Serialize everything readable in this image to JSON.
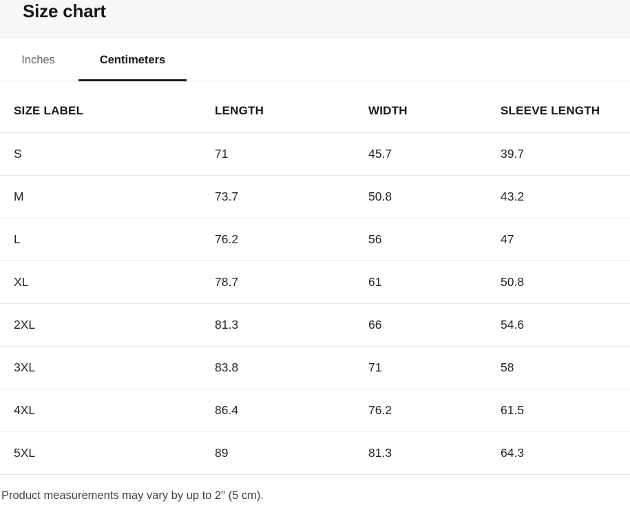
{
  "header": {
    "title": "Size chart"
  },
  "tabs": {
    "inches": {
      "label": "Inches",
      "active": false
    },
    "centimeters": {
      "label": "Centimeters",
      "active": true
    }
  },
  "table": {
    "columns": [
      "SIZE LABEL",
      "LENGTH",
      "WIDTH",
      "SLEEVE LENGTH"
    ],
    "rows": [
      [
        "S",
        "71",
        "45.7",
        "39.7"
      ],
      [
        "M",
        "73.7",
        "50.8",
        "43.2"
      ],
      [
        "L",
        "76.2",
        "56",
        "47"
      ],
      [
        "XL",
        "78.7",
        "61",
        "50.8"
      ],
      [
        "2XL",
        "81.3",
        "66",
        "54.6"
      ],
      [
        "3XL",
        "83.8",
        "71",
        "58"
      ],
      [
        "4XL",
        "86.4",
        "76.2",
        "61.5"
      ],
      [
        "5XL",
        "89",
        "81.3",
        "64.3"
      ]
    ]
  },
  "footnote": "Product measurements may vary by up to 2\" (5 cm).",
  "colors": {
    "header_band": "#f7f7f7",
    "active_tab_underline": "#1a1a1a",
    "inactive_tab_text": "#5f6368",
    "text": "#1f2126",
    "row_border": "#e9e9e9",
    "tabbar_border": "#e3e3e3",
    "footnote_text": "#3c434b"
  }
}
